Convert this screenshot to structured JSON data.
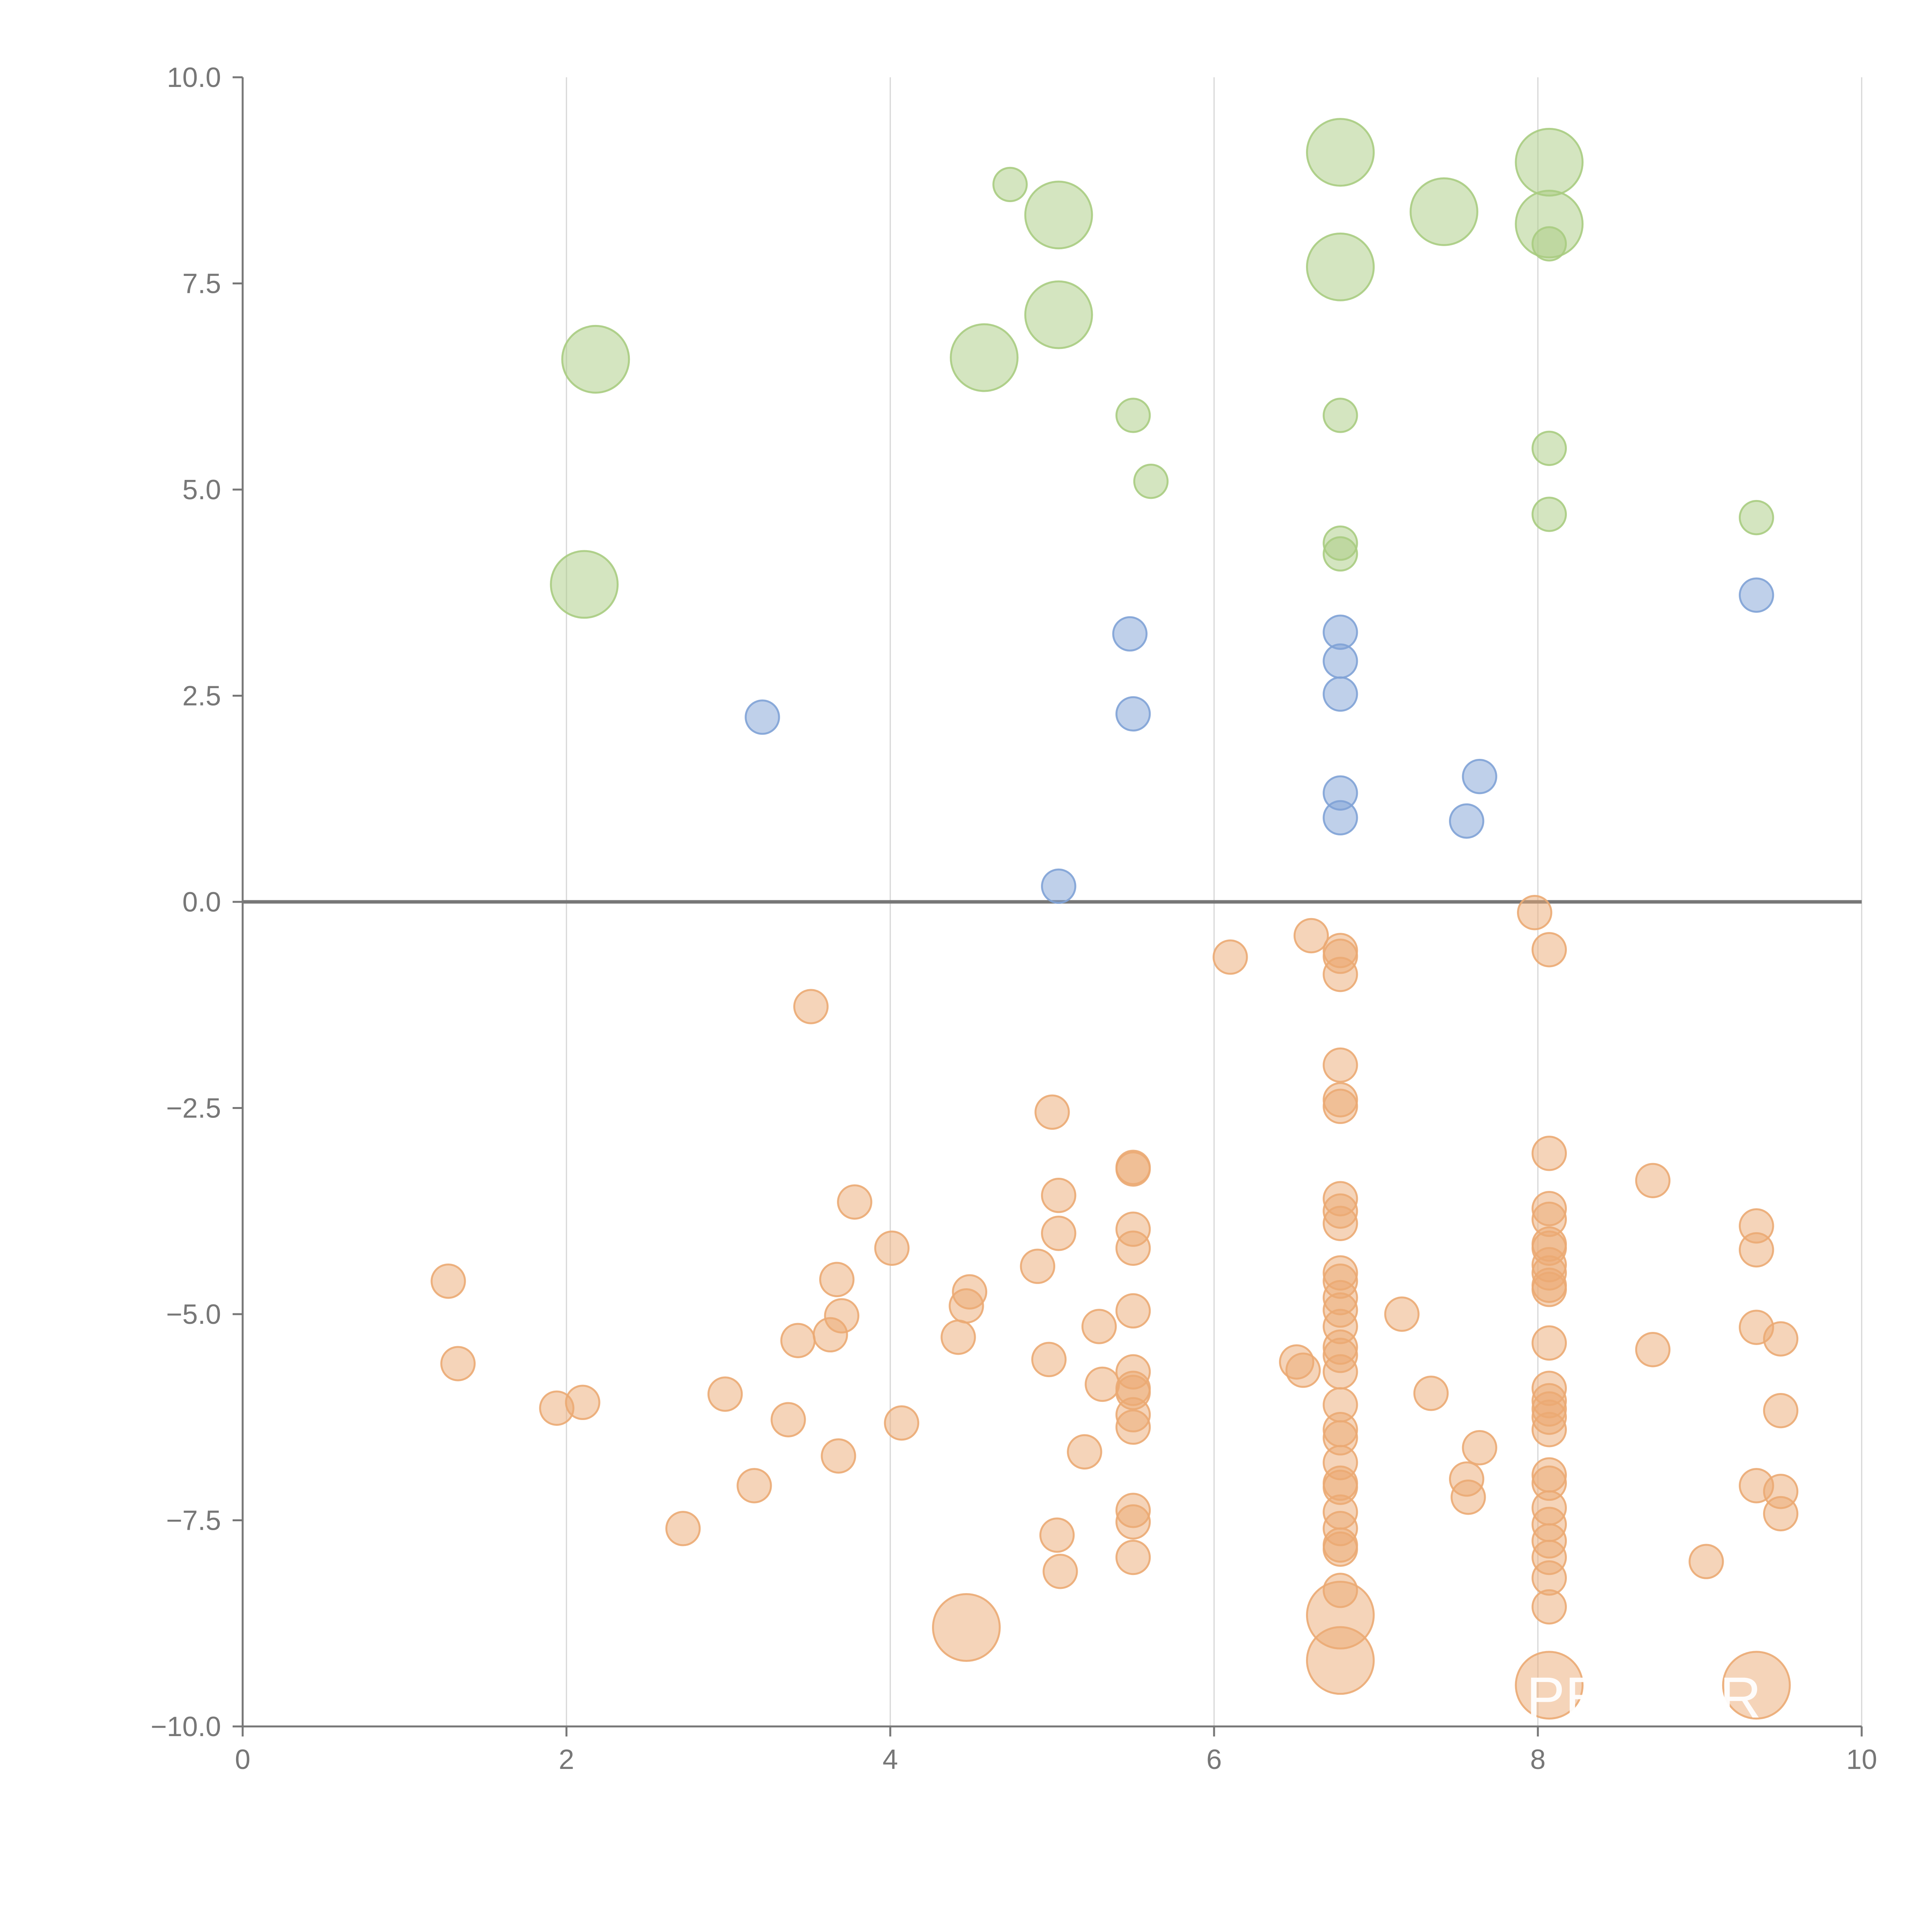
{
  "chart_data": {
    "type": "scatter",
    "title": "",
    "xlabel": "",
    "ylabel": "",
    "xlim": [
      0,
      10
    ],
    "ylim": [
      -10,
      10
    ],
    "x_ticks": [
      "0",
      "2",
      "4",
      "6",
      "8",
      "10"
    ],
    "y_ticks": [
      "10.0",
      "7.5",
      "5.0",
      "2.5",
      "0.0",
      "−2.5",
      "−5.0",
      "−7.5",
      "−10.0"
    ],
    "x_tick_values": [
      0,
      2,
      4,
      6,
      8,
      10
    ],
    "y_tick_values": [
      10,
      7.5,
      5,
      2.5,
      0,
      -2.5,
      -5,
      -7.5,
      -10
    ],
    "grid": "vertical",
    "watermark": "PEPPER",
    "series": [
      {
        "name": "green",
        "color": "#a9cc81",
        "points": [
          [
            2.18,
            6.58,
            1.8
          ],
          [
            2.11,
            3.85,
            1.8
          ],
          [
            4.74,
            8.7,
            0.9
          ],
          [
            5.04,
            8.33,
            1.8
          ],
          [
            5.04,
            7.12,
            1.8
          ],
          [
            4.58,
            6.6,
            1.8
          ],
          [
            5.5,
            5.9,
            0.9
          ],
          [
            5.61,
            5.1,
            0.9
          ],
          [
            6.78,
            9.09,
            1.8
          ],
          [
            6.78,
            7.7,
            1.8
          ],
          [
            6.78,
            5.9,
            0.9
          ],
          [
            6.78,
            4.35,
            0.9
          ],
          [
            6.78,
            4.22,
            0.9
          ],
          [
            7.42,
            8.37,
            1.8
          ],
          [
            8.07,
            8.97,
            1.8
          ],
          [
            8.07,
            8.22,
            1.8
          ],
          [
            8.07,
            7.98,
            0.9
          ],
          [
            8.07,
            5.5,
            0.9
          ],
          [
            8.07,
            4.7,
            0.9
          ],
          [
            9.35,
            4.66,
            0.9
          ]
        ]
      },
      {
        "name": "blue",
        "color": "#7fa2d6",
        "points": [
          [
            3.21,
            2.24,
            0.9
          ],
          [
            5.48,
            3.25,
            0.9
          ],
          [
            5.5,
            2.28,
            0.9
          ],
          [
            5.04,
            0.19,
            0.9
          ],
          [
            6.78,
            3.27,
            0.9
          ],
          [
            6.78,
            2.92,
            0.9
          ],
          [
            6.78,
            2.52,
            0.9
          ],
          [
            6.78,
            1.32,
            0.9
          ],
          [
            6.78,
            1.02,
            0.9
          ],
          [
            7.64,
            1.52,
            0.9
          ],
          [
            7.56,
            0.98,
            0.9
          ],
          [
            9.35,
            3.72,
            0.9
          ]
        ]
      },
      {
        "name": "orange",
        "color": "#ebaa73",
        "points": [
          [
            1.27,
            -4.6,
            0.9
          ],
          [
            1.33,
            -5.6,
            0.9
          ],
          [
            1.94,
            -6.14,
            0.9
          ],
          [
            2.1,
            -6.07,
            0.9
          ],
          [
            2.72,
            -7.6,
            0.9
          ],
          [
            2.98,
            -5.97,
            0.9
          ],
          [
            3.16,
            -7.08,
            0.9
          ],
          [
            3.37,
            -6.28,
            0.9
          ],
          [
            3.43,
            -5.32,
            0.9
          ],
          [
            3.51,
            -1.27,
            0.9
          ],
          [
            3.63,
            -5.25,
            0.9
          ],
          [
            3.67,
            -4.58,
            0.9
          ],
          [
            3.68,
            -6.72,
            0.9
          ],
          [
            3.7,
            -5.02,
            0.9
          ],
          [
            3.78,
            -3.64,
            0.9
          ],
          [
            4.01,
            -4.2,
            0.9
          ],
          [
            4.07,
            -6.32,
            0.9
          ],
          [
            4.42,
            -5.28,
            0.9
          ],
          [
            4.47,
            -4.9,
            0.9
          ],
          [
            4.49,
            -4.73,
            0.9
          ],
          [
            4.47,
            -8.8,
            1.8
          ],
          [
            4.91,
            -4.42,
            0.9
          ],
          [
            4.98,
            -5.55,
            0.9
          ],
          [
            5.0,
            -2.55,
            0.9
          ],
          [
            5.04,
            -3.56,
            0.9
          ],
          [
            5.04,
            -4.02,
            0.9
          ],
          [
            5.03,
            -7.68,
            0.9
          ],
          [
            5.05,
            -8.12,
            0.9
          ],
          [
            5.2,
            -6.67,
            0.9
          ],
          [
            5.29,
            -5.15,
            0.9
          ],
          [
            5.31,
            -5.85,
            0.9
          ],
          [
            5.5,
            -3.24,
            0.9
          ],
          [
            5.5,
            -3.22,
            0.9
          ],
          [
            5.5,
            -3.97,
            0.9
          ],
          [
            5.5,
            -4.2,
            0.9
          ],
          [
            5.5,
            -4.96,
            0.9
          ],
          [
            5.5,
            -5.7,
            0.9
          ],
          [
            5.5,
            -5.9,
            0.9
          ],
          [
            5.5,
            -5.95,
            0.9
          ],
          [
            5.5,
            -6.22,
            0.9
          ],
          [
            5.5,
            -6.37,
            0.9
          ],
          [
            5.5,
            -7.38,
            0.9
          ],
          [
            5.5,
            -7.52,
            0.9
          ],
          [
            5.5,
            -7.95,
            0.9
          ],
          [
            6.1,
            -0.67,
            0.9
          ],
          [
            6.51,
            -5.58,
            0.9
          ],
          [
            6.55,
            -5.68,
            0.9
          ],
          [
            6.6,
            -0.41,
            0.9
          ],
          [
            6.78,
            -0.59,
            0.9
          ],
          [
            6.78,
            -0.66,
            0.9
          ],
          [
            6.78,
            -0.88,
            0.9
          ],
          [
            6.78,
            -1.98,
            0.9
          ],
          [
            6.78,
            -2.4,
            0.9
          ],
          [
            6.78,
            -2.48,
            0.9
          ],
          [
            6.78,
            -3.6,
            0.9
          ],
          [
            6.78,
            -3.75,
            0.9
          ],
          [
            6.78,
            -3.9,
            0.9
          ],
          [
            6.78,
            -4.5,
            0.9
          ],
          [
            6.78,
            -4.6,
            0.9
          ],
          [
            6.78,
            -4.8,
            0.9
          ],
          [
            6.78,
            -4.95,
            0.9
          ],
          [
            6.78,
            -5.15,
            0.9
          ],
          [
            6.78,
            -5.4,
            0.9
          ],
          [
            6.78,
            -5.5,
            0.9
          ],
          [
            6.78,
            -5.7,
            0.9
          ],
          [
            6.78,
            -6.1,
            0.9
          ],
          [
            6.78,
            -6.4,
            0.9
          ],
          [
            6.78,
            -6.5,
            0.9
          ],
          [
            6.78,
            -6.8,
            0.9
          ],
          [
            6.78,
            -7.05,
            0.9
          ],
          [
            6.78,
            -7.1,
            0.9
          ],
          [
            6.78,
            -7.4,
            0.9
          ],
          [
            6.78,
            -7.6,
            0.9
          ],
          [
            6.78,
            -7.8,
            0.9
          ],
          [
            6.78,
            -7.85,
            0.9
          ],
          [
            6.78,
            -8.35,
            0.9
          ],
          [
            6.78,
            -8.65,
            1.8
          ],
          [
            6.78,
            -9.2,
            1.8
          ],
          [
            7.16,
            -5.0,
            0.9
          ],
          [
            7.34,
            -5.96,
            0.9
          ],
          [
            7.56,
            -7.0,
            0.9
          ],
          [
            7.57,
            -7.22,
            0.9
          ],
          [
            7.64,
            -6.62,
            0.9
          ],
          [
            7.98,
            -0.13,
            0.9
          ],
          [
            8.07,
            -0.58,
            0.9
          ],
          [
            8.07,
            -3.05,
            0.9
          ],
          [
            8.07,
            -3.72,
            0.9
          ],
          [
            8.07,
            -3.85,
            0.9
          ],
          [
            8.07,
            -4.15,
            0.9
          ],
          [
            8.07,
            -4.2,
            0.9
          ],
          [
            8.07,
            -4.4,
            0.9
          ],
          [
            8.07,
            -4.5,
            0.9
          ],
          [
            8.07,
            -4.65,
            0.9
          ],
          [
            8.07,
            -4.7,
            0.9
          ],
          [
            8.07,
            -5.35,
            0.9
          ],
          [
            8.07,
            -5.9,
            0.9
          ],
          [
            8.07,
            -6.05,
            0.9
          ],
          [
            8.07,
            -6.15,
            0.9
          ],
          [
            8.07,
            -6.25,
            0.9
          ],
          [
            8.07,
            -6.4,
            0.9
          ],
          [
            8.07,
            -6.95,
            0.9
          ],
          [
            8.07,
            -7.05,
            0.9
          ],
          [
            8.07,
            -7.35,
            0.9
          ],
          [
            8.07,
            -7.55,
            0.9
          ],
          [
            8.07,
            -7.75,
            0.9
          ],
          [
            8.07,
            -7.95,
            0.9
          ],
          [
            8.07,
            -8.2,
            0.9
          ],
          [
            8.07,
            -8.55,
            0.9
          ],
          [
            8.07,
            -9.5,
            1.8
          ],
          [
            8.71,
            -3.38,
            0.9
          ],
          [
            8.71,
            -5.43,
            0.9
          ],
          [
            9.04,
            -8.0,
            0.9
          ],
          [
            9.35,
            -3.93,
            0.9
          ],
          [
            9.35,
            -4.22,
            0.9
          ],
          [
            9.35,
            -5.16,
            0.9
          ],
          [
            9.35,
            -7.08,
            0.9
          ],
          [
            9.35,
            -9.5,
            1.8
          ],
          [
            9.5,
            -5.3,
            0.9
          ],
          [
            9.5,
            -6.17,
            0.9
          ],
          [
            9.5,
            -7.15,
            0.9
          ],
          [
            9.5,
            -7.42,
            0.9
          ]
        ]
      }
    ]
  }
}
